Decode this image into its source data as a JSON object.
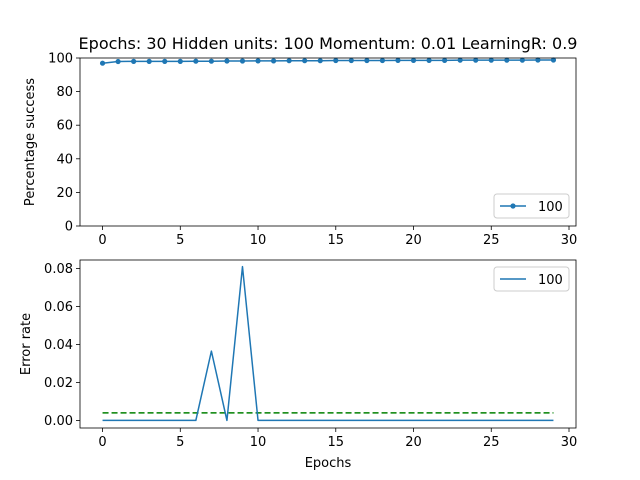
{
  "chart_data": [
    {
      "type": "line",
      "title": "Epochs: 30 Hidden units: 100 Momentum: 0.01 LearningR: 0.9",
      "xlabel": "",
      "ylabel": "Percentage success",
      "xlim": [
        -1.45,
        30.45
      ],
      "ylim": [
        0,
        100
      ],
      "xticks": [
        "0",
        "5",
        "10",
        "15",
        "20",
        "25",
        "30"
      ],
      "yticks": [
        "0",
        "20",
        "40",
        "60",
        "80",
        "100"
      ],
      "grid": false,
      "legend_placement": "lower right",
      "colors": {
        "series": "#1f77b4"
      },
      "series": [
        {
          "name": "100",
          "marker": "dot",
          "x": [
            0,
            1,
            2,
            3,
            4,
            5,
            6,
            7,
            8,
            9,
            10,
            11,
            12,
            13,
            14,
            15,
            16,
            17,
            18,
            19,
            20,
            21,
            22,
            23,
            24,
            25,
            26,
            27,
            28,
            29
          ],
          "values": [
            96.9,
            97.9,
            98.0,
            98.0,
            98.0,
            98.0,
            98.1,
            98.1,
            98.2,
            98.2,
            98.3,
            98.3,
            98.4,
            98.4,
            98.4,
            98.5,
            98.5,
            98.5,
            98.5,
            98.6,
            98.6,
            98.6,
            98.6,
            98.7,
            98.7,
            98.7,
            98.7,
            98.7,
            98.8,
            98.8
          ]
        }
      ]
    },
    {
      "type": "line",
      "title": "",
      "xlabel": "Epochs",
      "ylabel": "Error rate",
      "xlim": [
        -1.45,
        30.45
      ],
      "ylim": [
        -0.004,
        0.0845
      ],
      "xticks": [
        "0",
        "5",
        "10",
        "15",
        "20",
        "25",
        "30"
      ],
      "yticks": [
        "0.00",
        "0.02",
        "0.04",
        "0.06",
        "0.08"
      ],
      "grid": false,
      "legend_placement": "upper right",
      "colors": {
        "series": "#1f77b4",
        "threshold": "#008000"
      },
      "series": [
        {
          "name": "100",
          "x": [
            0,
            1,
            2,
            3,
            4,
            5,
            6,
            7,
            8,
            9,
            10,
            11,
            12,
            13,
            14,
            15,
            16,
            17,
            18,
            19,
            20,
            21,
            22,
            23,
            24,
            25,
            26,
            27,
            28,
            29
          ],
          "values": [
            0,
            0,
            0,
            0,
            0,
            0,
            0,
            0.0365,
            0,
            0.081,
            0,
            0,
            0,
            0,
            0,
            0,
            0,
            0,
            0,
            0,
            0,
            0,
            0,
            0,
            0,
            0,
            0,
            0,
            0,
            0
          ]
        }
      ],
      "threshold_line": {
        "style": "dashed",
        "x": [
          0,
          29
        ],
        "y": 0.004
      }
    }
  ]
}
